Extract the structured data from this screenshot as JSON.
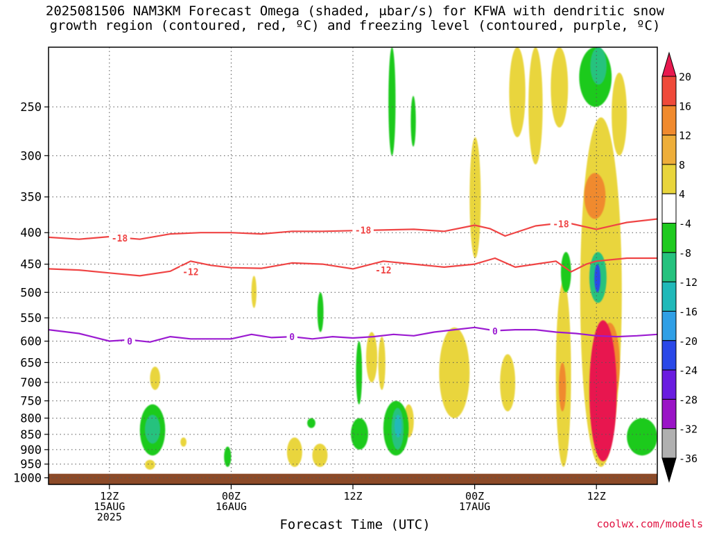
{
  "header": {
    "title_line1": "2025081506 NAM3KM Forecast Omega (shaded, μbar/s) for KFWA with dendritic snow",
    "title_line2": "growth region (contoured, red, ºC) and freezing level (contoured, purple, ºC)"
  },
  "footer": {
    "attribution": "coolwx.com/models",
    "x_axis_title": "Forecast Time (UTC)"
  },
  "chart_data": {
    "type": "heatmap",
    "title": "2025081506 NAM3KM Forecast Omega (shaded, μbar/s) for KFWA with dendritic snow growth region (contoured, red, ºC) and freezing level (contoured, purple, ºC)",
    "xlabel": "Forecast Time (UTC)",
    "ylabel": "",
    "x_range_hours_after_init": [
      0,
      60
    ],
    "y_axis": {
      "scale": "log-pressure",
      "range_mb": [
        1025,
        200
      ],
      "ticks": [
        250,
        300,
        350,
        400,
        450,
        500,
        550,
        600,
        650,
        700,
        750,
        800,
        850,
        900,
        950,
        1000
      ]
    },
    "x_ticks": [
      {
        "hour": 6,
        "lines": [
          "12Z",
          "15AUG",
          "2025"
        ]
      },
      {
        "hour": 18,
        "lines": [
          "00Z",
          "16AUG"
        ]
      },
      {
        "hour": 30,
        "lines": [
          "12Z",
          ""
        ]
      },
      {
        "hour": 42,
        "lines": [
          "00Z",
          "17AUG"
        ]
      },
      {
        "hour": 54,
        "lines": [
          "12Z",
          ""
        ]
      }
    ],
    "grid": true,
    "colorbar": {
      "labels": [
        20,
        16,
        12,
        8,
        4,
        -4,
        -8,
        -12,
        -16,
        -20,
        -24,
        -28,
        -32,
        -36
      ],
      "colors": [
        "#e8194f",
        "#ef4a3a",
        "#f08a2e",
        "#eeae3a",
        "#e9d53c",
        "#ffffff",
        "#1fca1f",
        "#25c27e",
        "#20b9b9",
        "#2f9fe6",
        "#2a48e8",
        "#6a1ce0",
        "#9a14c6",
        "#b0b0b0",
        "#000000"
      ]
    },
    "omega_bands": [
      {
        "name": "-8 to -4 (green)",
        "color": "#1fca1f"
      },
      {
        "name": "4 to 8 (yellow)",
        "color": "#e9d53c"
      },
      {
        "name": "8 to 12",
        "color": "#eeae3a"
      },
      {
        "name": "12 to 16",
        "color": "#f08a2e"
      },
      {
        "name": ">20",
        "color": "#e8194f"
      }
    ],
    "series": [
      {
        "name": "-18",
        "color": "#ef4444",
        "x": [
          0,
          3,
          6,
          9,
          12,
          15,
          18,
          21,
          24,
          27,
          30,
          33,
          36,
          39,
          42,
          43.5,
          45,
          48,
          51,
          54,
          57,
          60
        ],
        "y": [
          407,
          410,
          406,
          410,
          402,
          400,
          400,
          402,
          398,
          398,
          397,
          396,
          395,
          398,
          389,
          394,
          405,
          390,
          385,
          395,
          385,
          380
        ]
      },
      {
        "name": "-12",
        "color": "#ef4444",
        "x": [
          0,
          3,
          6,
          9,
          12,
          14,
          16,
          18,
          21,
          24,
          27,
          30,
          33,
          36,
          39,
          42,
          44,
          46,
          48,
          50,
          51.5,
          53,
          54,
          57,
          60
        ],
        "y": [
          458,
          460,
          465,
          470,
          462,
          445,
          452,
          456,
          457,
          448,
          450,
          458,
          445,
          450,
          455,
          450,
          440,
          455,
          450,
          445,
          463,
          450,
          445,
          440,
          440
        ]
      },
      {
        "name": "0",
        "color": "#9b1bd1",
        "x": [
          0,
          3,
          6,
          8,
          10,
          12,
          14,
          16,
          18,
          20,
          22,
          24,
          26,
          28,
          30,
          32,
          34,
          36,
          38,
          40,
          42,
          44,
          46,
          48,
          50,
          52,
          54,
          56,
          58,
          60
        ],
        "y": [
          575,
          583,
          600,
          597,
          602,
          590,
          595,
          595,
          595,
          585,
          592,
          590,
          595,
          590,
          593,
          590,
          585,
          588,
          580,
          575,
          570,
          577,
          575,
          575,
          580,
          583,
          588,
          590,
          588,
          585
        ]
      }
    ],
    "contour_labels": [
      {
        "text": "-18",
        "hour": 7,
        "mb": 408
      },
      {
        "text": "-18",
        "hour": 31,
        "mb": 396
      },
      {
        "text": "-18",
        "hour": 50.5,
        "mb": 387
      },
      {
        "text": "-12",
        "hour": 14,
        "mb": 463
      },
      {
        "text": "-12",
        "hour": 33,
        "mb": 460
      },
      {
        "text": "0",
        "hour": 8,
        "mb": 600
      },
      {
        "text": "0",
        "hour": 24,
        "mb": 590
      },
      {
        "text": "0",
        "hour": 44,
        "mb": 578
      }
    ],
    "features": [
      {
        "color": "#8c4a28",
        "hour": [
          0,
          60
        ],
        "mb": [
          985,
          1025
        ]
      },
      {
        "color": "#e9d53c",
        "hour": [
          20,
          20.5
        ],
        "mb": [
          470,
          530
        ]
      },
      {
        "color": "#e9d53c",
        "hour": [
          10,
          11
        ],
        "mb": [
          660,
          720
        ]
      },
      {
        "color": "#e9d53c",
        "hour": [
          13,
          13.6
        ],
        "mb": [
          860,
          890
        ]
      },
      {
        "color": "#e9d53c",
        "hour": [
          9.5,
          10.5
        ],
        "mb": [
          935,
          970
        ]
      },
      {
        "color": "#e9d53c",
        "hour": [
          23.5,
          25
        ],
        "mb": [
          860,
          960
        ]
      },
      {
        "color": "#e9d53c",
        "hour": [
          26,
          27.5
        ],
        "mb": [
          880,
          960
        ]
      },
      {
        "color": "#e9d53c",
        "hour": [
          31.3,
          32.4
        ],
        "mb": [
          580,
          700
        ]
      },
      {
        "color": "#e9d53c",
        "hour": [
          35,
          36
        ],
        "mb": [
          760,
          860
        ]
      },
      {
        "color": "#e9d53c",
        "hour": [
          38.5,
          41.5
        ],
        "mb": [
          570,
          800
        ]
      },
      {
        "color": "#e9d53c",
        "hour": [
          41.5,
          42.6
        ],
        "mb": [
          280,
          440
        ]
      },
      {
        "color": "#e9d53c",
        "hour": [
          44.5,
          46
        ],
        "mb": [
          630,
          780
        ]
      },
      {
        "color": "#e9d53c",
        "hour": [
          45.4,
          47
        ],
        "mb": [
          200,
          280
        ]
      },
      {
        "color": "#e9d53c",
        "hour": [
          47.3,
          48.7
        ],
        "mb": [
          200,
          310
        ]
      },
      {
        "color": "#e9d53c",
        "hour": [
          49.5,
          51.2
        ],
        "mb": [
          200,
          270
        ]
      },
      {
        "color": "#e9d53c",
        "hour": [
          50,
          51.5
        ],
        "mb": [
          480,
          960
        ]
      },
      {
        "color": "#e9d53c",
        "hour": [
          52.4,
          56.5
        ],
        "mb": [
          260,
          960
        ]
      },
      {
        "color": "#e9d53c",
        "hour": [
          55.5,
          57
        ],
        "mb": [
          220,
          300
        ]
      },
      {
        "color": "#e9d53c",
        "hour": [
          32.5,
          33.2
        ],
        "mb": [
          590,
          720
        ]
      },
      {
        "color": "#1fca1f",
        "hour": [
          9,
          11.5
        ],
        "mb": [
          760,
          920
        ]
      },
      {
        "color": "#1fca1f",
        "hour": [
          29.8,
          31.5
        ],
        "mb": [
          800,
          900
        ]
      },
      {
        "color": "#1fca1f",
        "hour": [
          33,
          35.5
        ],
        "mb": [
          750,
          920
        ]
      },
      {
        "color": "#1fca1f",
        "hour": [
          50.5,
          51.5
        ],
        "mb": [
          430,
          500
        ]
      },
      {
        "color": "#1fca1f",
        "hour": [
          52.3,
          55.5
        ],
        "mb": [
          200,
          250
        ]
      },
      {
        "color": "#1fca1f",
        "hour": [
          57,
          60
        ],
        "mb": [
          800,
          920
        ]
      },
      {
        "color": "#1fca1f",
        "hour": [
          26.5,
          27.1
        ],
        "mb": [
          500,
          580
        ]
      },
      {
        "color": "#1fca1f",
        "hour": [
          30.3,
          30.9
        ],
        "mb": [
          600,
          760
        ]
      },
      {
        "color": "#1fca1f",
        "hour": [
          33.5,
          34.2
        ],
        "mb": [
          200,
          300
        ]
      },
      {
        "color": "#1fca1f",
        "hour": [
          35.7,
          36.2
        ],
        "mb": [
          240,
          290
        ]
      },
      {
        "color": "#1fca1f",
        "hour": [
          17.3,
          18
        ],
        "mb": [
          890,
          960
        ]
      },
      {
        "color": "#1fca1f",
        "hour": [
          25.5,
          26.3
        ],
        "mb": [
          800,
          830
        ]
      },
      {
        "color": "#25c27e",
        "hour": [
          9.5,
          11
        ],
        "mb": [
          790,
          880
        ]
      },
      {
        "color": "#25c27e",
        "hour": [
          33.8,
          35
        ],
        "mb": [
          770,
          900
        ]
      },
      {
        "color": "#25c27e",
        "hour": [
          53.3,
          55
        ],
        "mb": [
          430,
          520
        ]
      },
      {
        "color": "#25c27e",
        "hour": [
          53.4,
          55
        ],
        "mb": [
          200,
          230
        ]
      },
      {
        "color": "#20b9b9",
        "hour": [
          34.1,
          34.8
        ],
        "mb": [
          790,
          860
        ]
      },
      {
        "color": "#2a48e8",
        "hour": [
          53.8,
          54.4
        ],
        "mb": [
          450,
          500
        ]
      },
      {
        "color": "#f08a2e",
        "hour": [
          52.8,
          54.9
        ],
        "mb": [
          320,
          380
        ]
      },
      {
        "color": "#f08a2e",
        "hour": [
          54.3,
          56.3
        ],
        "mb": [
          560,
          760
        ]
      },
      {
        "color": "#f08a2e",
        "hour": [
          50.3,
          51
        ],
        "mb": [
          650,
          780
        ]
      },
      {
        "color": "#e8194f",
        "hour": [
          53.3,
          56
        ],
        "mb": [
          555,
          940
        ]
      }
    ]
  }
}
